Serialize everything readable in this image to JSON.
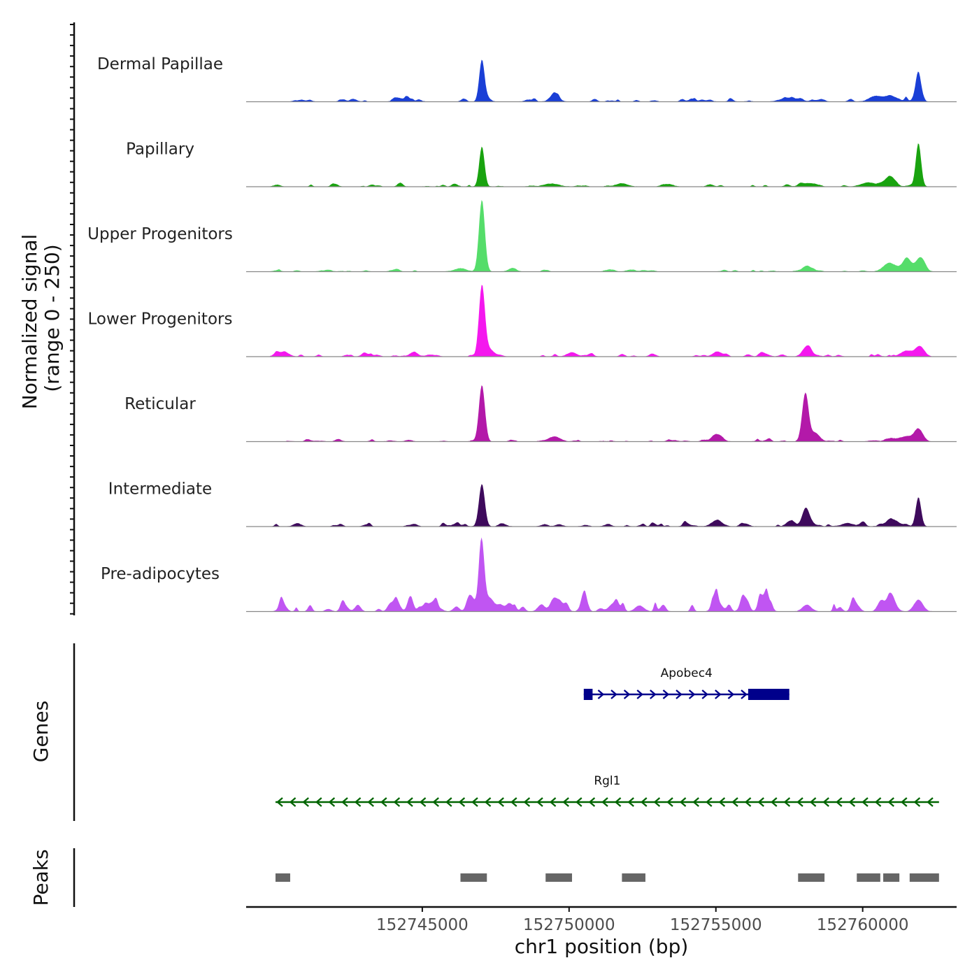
{
  "chart_data": {
    "type": "area",
    "title": "",
    "xlabel": "chr1 position (bp)",
    "ylabel": "Normalized signal",
    "ylabel_range": "(range 0 - 250)",
    "chromosome": "chr1",
    "xlim": [
      152739000,
      152763200
    ],
    "ylim": [
      0,
      250
    ],
    "x_ticks": [
      152745000,
      152750000,
      152755000,
      152760000
    ],
    "x_tick_labels": [
      "152745000",
      "152750000",
      "152755000",
      "152760000"
    ],
    "tracks": [
      {
        "name": "Dermal Papillae",
        "color": "#1a3fd6",
        "peaks": [
          [
            152747030,
            250,
            90
          ],
          [
            152761900,
            165,
            90
          ],
          [
            152749500,
            45,
            150
          ],
          [
            152760400,
            30,
            200
          ],
          [
            152760900,
            28,
            250
          ],
          [
            152757400,
            18,
            250
          ]
        ],
        "baseline_noise": 14,
        "noise_density": 0.5,
        "noise_start": 152740500,
        "noise_end": 152762400
      },
      {
        "name": "Papillary",
        "color": "#19a30f",
        "peaks": [
          [
            152747030,
            240,
            90
          ],
          [
            152761900,
            260,
            90
          ],
          [
            152760950,
            60,
            160
          ],
          [
            152760200,
            25,
            250
          ],
          [
            152758100,
            20,
            200
          ],
          [
            152751800,
            20,
            200
          ],
          [
            152749400,
            18,
            250
          ]
        ],
        "baseline_noise": 10,
        "noise_density": 0.35,
        "noise_start": 152740000,
        "noise_end": 152762400
      },
      {
        "name": "Upper Progenitors",
        "color": "#55dd6a",
        "peaks": [
          [
            152747030,
            430,
            100
          ],
          [
            152761500,
            75,
            150
          ],
          [
            152760900,
            50,
            200
          ],
          [
            152761950,
            80,
            150
          ],
          [
            152758100,
            35,
            150
          ],
          [
            152746300,
            20,
            200
          ]
        ],
        "baseline_noise": 9,
        "noise_density": 0.35,
        "noise_start": 152740000,
        "noise_end": 152762400
      },
      {
        "name": "Lower Progenitors",
        "color": "#f418ee",
        "peaks": [
          [
            152747030,
            420,
            100
          ],
          [
            152758100,
            60,
            150
          ],
          [
            152755050,
            30,
            150
          ],
          [
            152761950,
            60,
            150
          ],
          [
            152761500,
            35,
            200
          ],
          [
            152747300,
            40,
            150
          ],
          [
            152740200,
            20,
            200
          ]
        ],
        "baseline_noise": 12,
        "noise_density": 0.45,
        "noise_start": 152740000,
        "noise_end": 152762400
      },
      {
        "name": "Reticular",
        "color": "#b319a9",
        "peaks": [
          [
            152747030,
            330,
            100
          ],
          [
            152758050,
            290,
            110
          ],
          [
            152758400,
            45,
            150
          ],
          [
            152761900,
            75,
            150
          ],
          [
            152755050,
            40,
            150
          ],
          [
            152749500,
            30,
            200
          ],
          [
            152761400,
            25,
            250
          ]
        ],
        "baseline_noise": 10,
        "noise_density": 0.4,
        "noise_start": 152740000,
        "noise_end": 152762400
      },
      {
        "name": "Intermediate",
        "color": "#3e0a5c",
        "peaks": [
          [
            152747030,
            255,
            100
          ],
          [
            152761900,
            175,
            90
          ],
          [
            152758050,
            100,
            120
          ],
          [
            152755050,
            28,
            200
          ],
          [
            152761000,
            30,
            250
          ],
          [
            152759500,
            15,
            250
          ]
        ],
        "baseline_noise": 14,
        "noise_density": 0.5,
        "noise_start": 152740000,
        "noise_end": 152762400
      },
      {
        "name": "Pre-adipocytes",
        "color": "#c055f2",
        "peaks": [
          [
            152747030,
            360,
            90
          ],
          [
            152747300,
            80,
            150
          ],
          [
            152749600,
            50,
            150
          ],
          [
            152751500,
            45,
            150
          ],
          [
            152755050,
            60,
            150
          ],
          [
            152756650,
            60,
            150
          ],
          [
            152758100,
            40,
            150
          ],
          [
            152761900,
            70,
            150
          ],
          [
            152761000,
            55,
            150
          ],
          [
            152748000,
            35,
            150
          ],
          [
            152752400,
            35,
            150
          ]
        ],
        "baseline_noise": 45,
        "noise_density": 0.6,
        "noise_start": 152740000,
        "noise_end": 152762400
      }
    ],
    "genes_label": "Genes",
    "genes": [
      {
        "name": "Apobec4",
        "start": 152750500,
        "end": 152757500,
        "strand": "+",
        "color": "#00008b",
        "exons": [
          [
            152750500,
            152750800
          ],
          [
            152756100,
            152757500
          ]
        ]
      },
      {
        "name": "Rgl1",
        "start": 152740000,
        "end": 152762600,
        "strand": "-",
        "color": "#006400",
        "exons": []
      }
    ],
    "peaks_label": "Peaks",
    "peak_regions": [
      [
        152740000,
        152740500
      ],
      [
        152746300,
        152747200
      ],
      [
        152749200,
        152750100
      ],
      [
        152751800,
        152752600
      ],
      [
        152757800,
        152758700
      ],
      [
        152759800,
        152760600
      ],
      [
        152760700,
        152761250
      ],
      [
        152761600,
        152762600
      ]
    ]
  }
}
